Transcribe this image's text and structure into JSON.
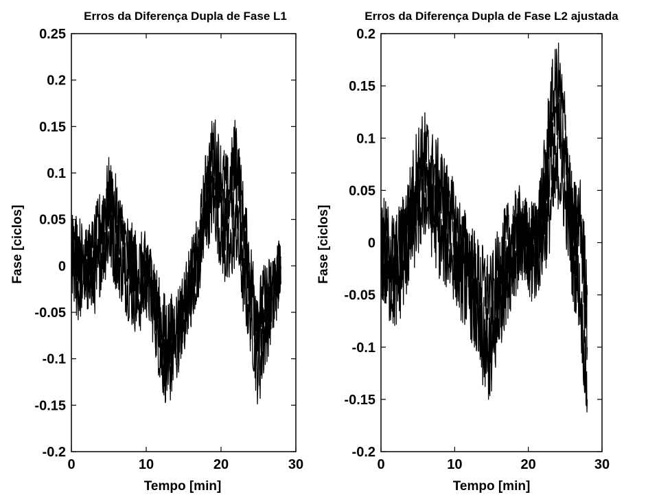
{
  "chart_data": [
    {
      "type": "line",
      "title": "Erros da Diferença Dupla de Fase L1",
      "xlabel": "Tempo [min]",
      "ylabel": "Fase [ciclos]",
      "xlim": [
        0,
        30
      ],
      "ylim": [
        -0.2,
        0.25
      ],
      "xticks": [
        "0",
        "10",
        "20",
        "30"
      ],
      "yticks": [
        "-0.2",
        "-0.15",
        "-0.1",
        "-0.05",
        "0",
        "0.05",
        "0.1",
        "0.15",
        "0.2",
        "0.25"
      ],
      "grid": false,
      "line_color": "#000000",
      "series": [
        {
          "x": [
            0,
            1,
            2,
            3,
            4,
            5,
            6,
            7,
            8,
            9,
            10,
            11,
            12,
            13,
            14,
            15,
            16,
            17,
            18,
            19,
            20,
            21,
            22,
            23,
            24,
            25,
            26,
            27,
            28
          ],
          "values": [
            0.02,
            0.0,
            -0.02,
            0.0,
            0.03,
            0.06,
            0.04,
            0.02,
            0.0,
            -0.02,
            -0.01,
            -0.03,
            -0.08,
            -0.1,
            -0.09,
            -0.05,
            -0.03,
            0.0,
            0.07,
            0.1,
            0.06,
            0.05,
            0.09,
            0.02,
            -0.03,
            -0.08,
            -0.05,
            -0.03,
            -0.02
          ]
        },
        {
          "x": [
            0,
            1,
            2,
            3,
            4,
            5,
            6,
            7,
            8,
            9,
            10,
            11,
            12,
            13,
            14,
            15,
            16,
            17,
            18,
            19,
            20,
            21,
            22,
            23,
            24,
            25,
            26,
            27,
            28
          ],
          "values": [
            0.0,
            -0.03,
            0.01,
            -0.02,
            0.01,
            0.03,
            0.01,
            -0.01,
            -0.03,
            -0.04,
            -0.02,
            -0.05,
            -0.1,
            -0.12,
            -0.08,
            -0.06,
            -0.02,
            0.01,
            0.05,
            0.07,
            0.03,
            0.0,
            0.04,
            -0.02,
            -0.06,
            -0.12,
            -0.07,
            -0.04,
            0.0
          ]
        },
        {
          "x": [
            0,
            1,
            2,
            3,
            4,
            5,
            6,
            7,
            8,
            9,
            10,
            11,
            12,
            13,
            14,
            15,
            16,
            17,
            18,
            19,
            20,
            21,
            22,
            23,
            24,
            25,
            26,
            27,
            28
          ],
          "values": [
            0.03,
            0.02,
            0.0,
            0.02,
            0.05,
            0.08,
            0.06,
            0.03,
            0.01,
            0.0,
            0.0,
            -0.02,
            -0.06,
            -0.07,
            -0.06,
            -0.04,
            -0.01,
            0.02,
            0.09,
            0.13,
            0.1,
            0.08,
            0.13,
            0.05,
            -0.01,
            -0.05,
            -0.03,
            -0.02,
            0.01
          ]
        }
      ]
    },
    {
      "type": "line",
      "title": "Erros da Diferença Dupla de Fase L2 ajustada",
      "xlabel": "Tempo [min]",
      "ylabel": "Fase [ciclos]",
      "xlim": [
        0,
        30
      ],
      "ylim": [
        -0.2,
        0.2
      ],
      "xticks": [
        "0",
        "10",
        "20",
        "30"
      ],
      "yticks": [
        "-0.2",
        "-0.15",
        "-0.1",
        "-0.05",
        "0",
        "0.05",
        "0.1",
        "0.15",
        "0.2"
      ],
      "grid": false,
      "line_color": "#000000",
      "series": [
        {
          "x": [
            0,
            1,
            2,
            3,
            4,
            5,
            6,
            7,
            8,
            9,
            10,
            11,
            12,
            13,
            14,
            15,
            16,
            17,
            18,
            19,
            20,
            21,
            22,
            23,
            24,
            25,
            26,
            27,
            28
          ],
          "values": [
            0.0,
            -0.02,
            -0.03,
            -0.01,
            0.02,
            0.05,
            0.07,
            0.05,
            0.04,
            0.03,
            0.01,
            -0.02,
            -0.03,
            -0.06,
            -0.09,
            -0.1,
            -0.05,
            -0.03,
            0.0,
            0.01,
            -0.01,
            0.0,
            0.03,
            0.08,
            0.12,
            0.08,
            0.0,
            0.01,
            -0.1
          ]
        },
        {
          "x": [
            0,
            1,
            2,
            3,
            4,
            5,
            6,
            7,
            8,
            9,
            10,
            11,
            12,
            13,
            14,
            15,
            16,
            17,
            18,
            19,
            20,
            21,
            22,
            23,
            24,
            25,
            26,
            27,
            28
          ],
          "values": [
            -0.02,
            -0.04,
            -0.05,
            -0.03,
            0.0,
            0.02,
            0.04,
            0.02,
            0.0,
            -0.01,
            -0.02,
            -0.04,
            -0.05,
            -0.08,
            -0.11,
            -0.12,
            -0.07,
            -0.04,
            -0.02,
            0.0,
            -0.03,
            -0.02,
            0.0,
            0.03,
            0.07,
            0.04,
            -0.02,
            -0.05,
            -0.15
          ]
        },
        {
          "x": [
            0,
            1,
            2,
            3,
            4,
            5,
            6,
            7,
            8,
            9,
            10,
            11,
            12,
            13,
            14,
            15,
            16,
            17,
            18,
            19,
            20,
            21,
            22,
            23,
            24,
            25,
            26,
            27,
            28
          ],
          "values": [
            0.01,
            0.0,
            -0.01,
            0.01,
            0.04,
            0.08,
            0.09,
            0.07,
            0.06,
            0.04,
            0.02,
            0.0,
            -0.01,
            -0.03,
            -0.04,
            -0.05,
            -0.02,
            0.0,
            0.01,
            0.02,
            0.0,
            0.01,
            0.05,
            0.13,
            0.16,
            0.11,
            0.02,
            0.03,
            -0.05
          ]
        }
      ]
    }
  ]
}
